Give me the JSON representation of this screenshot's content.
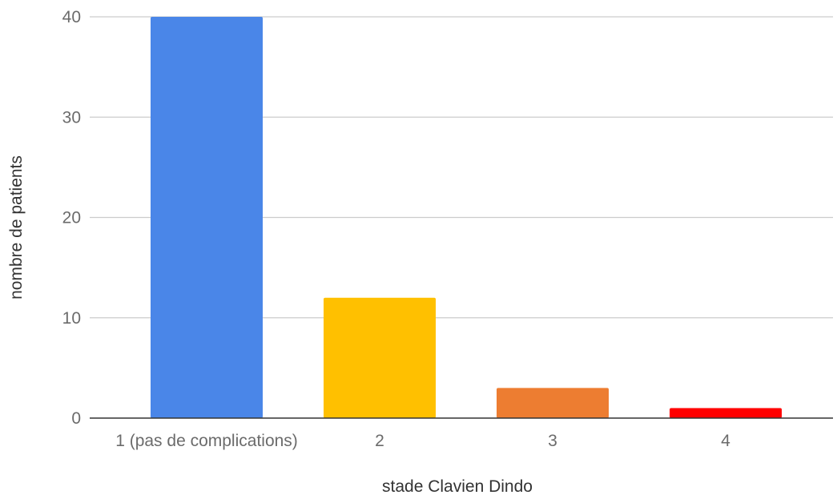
{
  "chart_data": {
    "type": "bar",
    "title": "",
    "xlabel": "stade Clavien Dindo",
    "ylabel": "nombre de patients",
    "categories": [
      "1 (pas de complications)",
      "2",
      "3",
      "4"
    ],
    "values": [
      40,
      12,
      3,
      1
    ],
    "colors": [
      "#4a86e8",
      "#ffc000",
      "#ed7d31",
      "#ff0000"
    ],
    "ylim": [
      0,
      40
    ],
    "yticks": [
      0,
      10,
      20,
      30,
      40
    ],
    "grid": true,
    "legend": "none"
  }
}
